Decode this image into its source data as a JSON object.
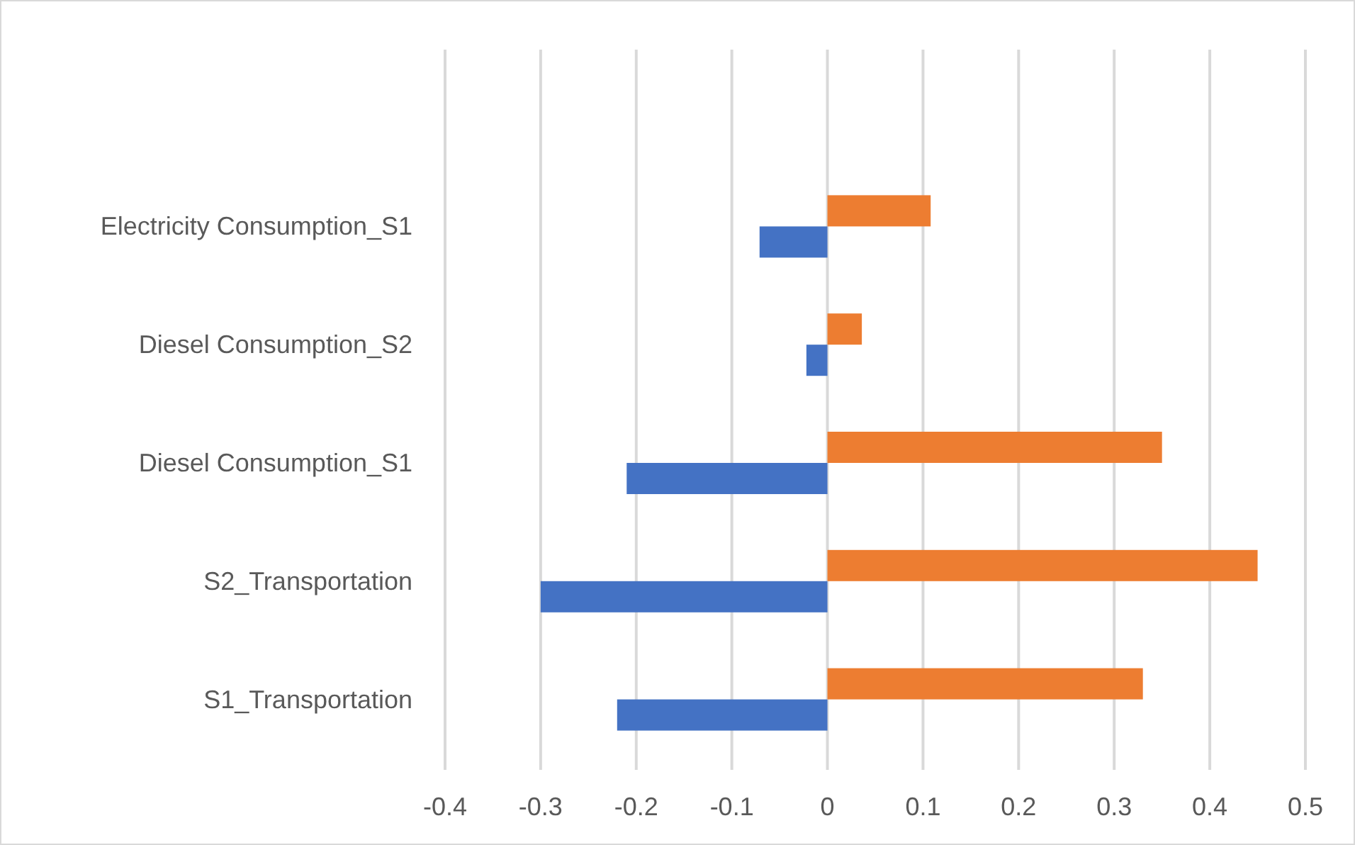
{
  "chart_data": {
    "type": "bar",
    "orientation": "horizontal",
    "categories": [
      "Electricity Consumption_S1",
      "Diesel Consumption_S2",
      "Diesel Consumption_S1",
      "S2_Transportation",
      "S1_Transportation"
    ],
    "series": [
      {
        "color": "#4472c4",
        "values": [
          -0.071,
          -0.022,
          -0.21,
          -0.3,
          -0.22
        ]
      },
      {
        "color": "#ed7d31",
        "values": [
          0.108,
          0.036,
          0.35,
          0.45,
          0.33
        ]
      }
    ],
    "xlim": [
      -0.4,
      0.5
    ],
    "xticks": [
      -0.4,
      -0.3,
      -0.2,
      -0.1,
      0,
      0.1,
      0.2,
      0.3,
      0.4,
      0.5
    ],
    "grid": "x"
  }
}
